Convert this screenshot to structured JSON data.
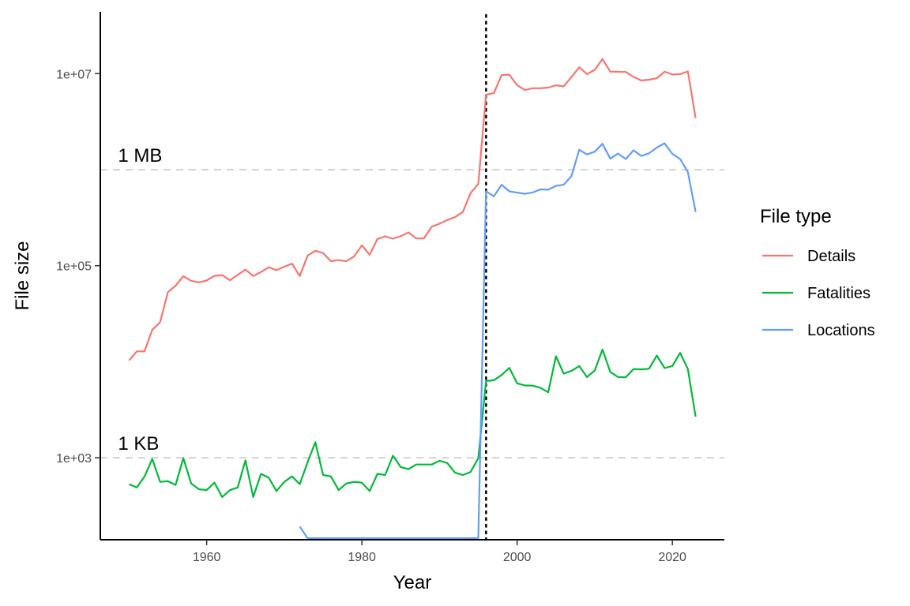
{
  "chart_data": {
    "type": "line",
    "xlabel": "Year",
    "ylabel": "File size",
    "y_scale": "log10",
    "xlim": [
      1946.3,
      2026.7
    ],
    "ylim": [
      140,
      44000000
    ],
    "x_ticks": [
      1960,
      1980,
      2000,
      2020
    ],
    "y_ticks": [
      {
        "value": 1000,
        "label": "1e+03"
      },
      {
        "value": 100000,
        "label": "1e+05"
      },
      {
        "value": 10000000,
        "label": "1e+07"
      }
    ],
    "grid": false,
    "legend": {
      "title": "File type",
      "position": "right"
    },
    "reference_lines": [
      {
        "axis": "y",
        "value": 1000,
        "label": "1 KB",
        "style": "dashed",
        "color": "#d3d3d3"
      },
      {
        "axis": "y",
        "value": 1000000,
        "label": "1 MB",
        "style": "dashed",
        "color": "#d3d3d3"
      },
      {
        "axis": "x",
        "value": 1996,
        "label": "",
        "style": "dotted",
        "color": "#000000"
      }
    ],
    "series": [
      {
        "name": "Details",
        "color": "#F8766D",
        "x": [
          1950,
          1951,
          1952,
          1953,
          1954,
          1955,
          1956,
          1957,
          1958,
          1959,
          1960,
          1961,
          1962,
          1963,
          1964,
          1965,
          1966,
          1967,
          1968,
          1969,
          1970,
          1971,
          1972,
          1973,
          1974,
          1975,
          1976,
          1977,
          1978,
          1979,
          1980,
          1981,
          1982,
          1983,
          1984,
          1985,
          1986,
          1987,
          1988,
          1989,
          1990,
          1991,
          1992,
          1993,
          1994,
          1995,
          1996,
          1997,
          1998,
          1999,
          2000,
          2001,
          2002,
          2003,
          2004,
          2005,
          2006,
          2007,
          2008,
          2009,
          2010,
          2011,
          2012,
          2013,
          2014,
          2015,
          2016,
          2017,
          2018,
          2019,
          2020,
          2021,
          2022,
          2023
        ],
        "values": [
          10300,
          12800,
          12800,
          21500,
          25800,
          53000,
          62000,
          77800,
          69600,
          67000,
          70000,
          78300,
          79800,
          70500,
          80200,
          91000,
          78000,
          86000,
          96300,
          89700,
          97500,
          104900,
          78000,
          127500,
          142900,
          135500,
          111400,
          114100,
          111300,
          125000,
          162700,
          130000,
          189600,
          202000,
          191000,
          203000,
          222400,
          192000,
          192300,
          255200,
          273500,
          298600,
          320000,
          362200,
          570000,
          710000,
          6050000,
          6250000,
          9650000,
          9750000,
          7580000,
          6750000,
          7050000,
          7050000,
          7150000,
          7560000,
          7380000,
          9200000,
          11640000,
          9890000,
          10930000,
          14200000,
          10490000,
          10460000,
          10400000,
          9230000,
          8480000,
          8650000,
          8940000,
          10460000,
          9790000,
          9870000,
          10550000,
          3450000
        ]
      },
      {
        "name": "Fatalities",
        "color": "#00BA38",
        "x": [
          1950,
          1951,
          1952,
          1953,
          1954,
          1955,
          1956,
          1957,
          1958,
          1959,
          1960,
          1961,
          1962,
          1963,
          1964,
          1965,
          1966,
          1967,
          1968,
          1969,
          1970,
          1971,
          1972,
          1973,
          1974,
          1975,
          1976,
          1977,
          1978,
          1979,
          1980,
          1981,
          1982,
          1983,
          1984,
          1985,
          1986,
          1987,
          1988,
          1989,
          1990,
          1991,
          1992,
          1993,
          1994,
          1995,
          1996,
          1997,
          1998,
          1999,
          2000,
          2001,
          2002,
          2003,
          2004,
          2005,
          2006,
          2007,
          2008,
          2009,
          2010,
          2011,
          2012,
          2013,
          2014,
          2015,
          2016,
          2017,
          2018,
          2019,
          2020,
          2021,
          2022,
          2023
        ],
        "values": [
          530,
          490,
          640,
          970,
          560,
          570,
          520,
          990,
          540,
          470,
          460,
          550,
          390,
          460,
          490,
          940,
          390,
          680,
          620,
          450,
          560,
          640,
          530,
          900,
          1450,
          660,
          640,
          460,
          540,
          560,
          550,
          450,
          680,
          660,
          1050,
          800,
          760,
          850,
          850,
          850,
          930,
          880,
          700,
          660,
          710,
          990,
          6290,
          6410,
          7280,
          8630,
          5950,
          5660,
          5640,
          5360,
          4800,
          11400,
          7520,
          8010,
          9010,
          6910,
          8100,
          13380,
          7810,
          6930,
          6890,
          8380,
          8320,
          8450,
          11580,
          8570,
          9020,
          12370,
          8390,
          2680
        ]
      },
      {
        "name": "Locations",
        "color": "#619CFF",
        "x": [
          1972,
          1973,
          1974,
          1975,
          1976,
          1977,
          1978,
          1979,
          1980,
          1981,
          1982,
          1983,
          1984,
          1985,
          1986,
          1987,
          1988,
          1989,
          1990,
          1991,
          1992,
          1993,
          1994,
          1995,
          1996,
          1997,
          1998,
          1999,
          2000,
          2001,
          2002,
          2003,
          2004,
          2005,
          2006,
          2007,
          2008,
          2009,
          2010,
          2011,
          2012,
          2013,
          2014,
          2015,
          2016,
          2017,
          2018,
          2019,
          2020,
          2021,
          2022,
          2023
        ],
        "values": [
          192,
          145,
          145,
          145,
          145,
          145,
          145,
          145,
          145,
          145,
          145,
          145,
          145,
          145,
          145,
          145,
          145,
          145,
          145,
          145,
          145,
          145,
          145,
          145,
          595000,
          528000,
          697000,
          594000,
          577000,
          560000,
          579000,
          623000,
          618000,
          677000,
          697000,
          856000,
          1610000,
          1440000,
          1540000,
          1860000,
          1300000,
          1470000,
          1290000,
          1590000,
          1390000,
          1480000,
          1700000,
          1880000,
          1460000,
          1290000,
          942000,
          363000
        ]
      }
    ]
  }
}
